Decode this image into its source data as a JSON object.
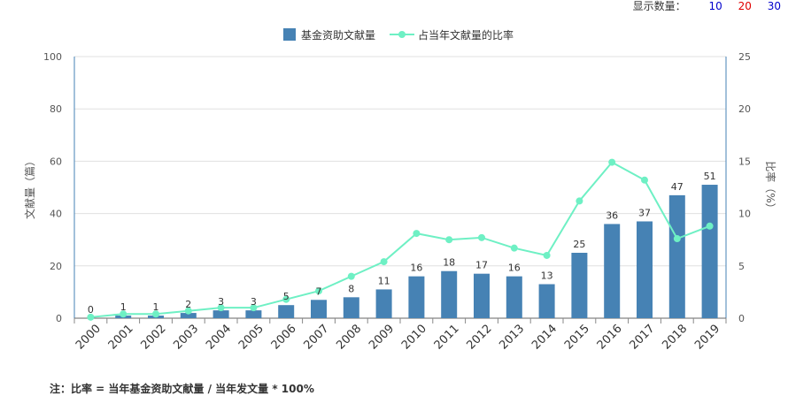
{
  "toolbar": {
    "label": "显示数量：",
    "options": [
      {
        "text": "10",
        "color": "#0000cc"
      },
      {
        "text": "20",
        "color": "#e00000"
      },
      {
        "text": "30",
        "color": "#0000cc"
      }
    ]
  },
  "note": "注：比率 = 当年基金资助文献量 / 当年发文量 * 100%",
  "chart_data": {
    "type": "bar",
    "categories": [
      "2000",
      "2001",
      "2002",
      "2003",
      "2004",
      "2005",
      "2006",
      "2007",
      "2008",
      "2009",
      "2010",
      "2011",
      "2012",
      "2013",
      "2014",
      "2015",
      "2016",
      "2017",
      "2018",
      "2019"
    ],
    "series": [
      {
        "name": "基金资助文献量",
        "type": "bar",
        "axis": "left",
        "color": "#4682b4",
        "values": [
          0,
          1,
          1,
          2,
          3,
          3,
          5,
          7,
          8,
          11,
          16,
          18,
          17,
          16,
          13,
          25,
          36,
          37,
          47,
          51
        ]
      },
      {
        "name": "占当年文献量的比率",
        "type": "line",
        "axis": "right",
        "color": "#6ef0c4",
        "values": [
          0.1,
          0.4,
          0.4,
          0.7,
          1.0,
          1.0,
          1.8,
          2.6,
          4.0,
          5.4,
          8.1,
          7.5,
          7.7,
          6.7,
          6.0,
          11.2,
          14.9,
          13.2,
          7.6,
          8.8
        ]
      }
    ],
    "ylabel": "文献量（篇）",
    "y2label": "比率（%）",
    "ylim": [
      0,
      100
    ],
    "y2lim": [
      0,
      25
    ],
    "yticks": [
      0,
      20,
      40,
      60,
      80,
      100
    ],
    "y2ticks": [
      0,
      5,
      10,
      15,
      20,
      25
    ],
    "grid": true,
    "legend_position": "top-center"
  }
}
